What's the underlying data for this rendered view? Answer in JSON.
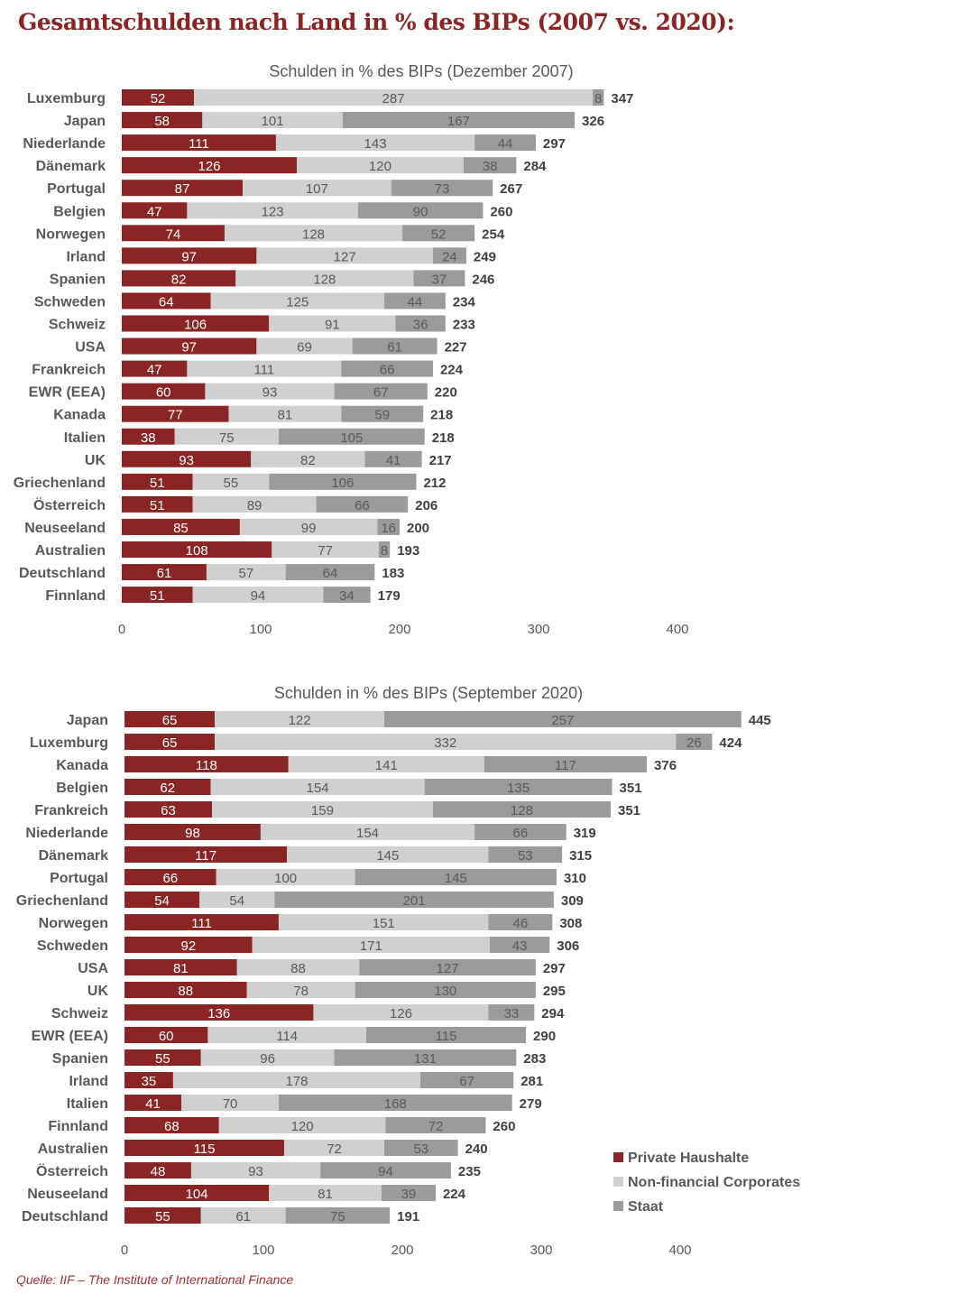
{
  "title": "Gesamtschulden nach Land in % des BIPs (2007 vs. 2020):",
  "source": "Quelle: IIF – The Institute of International Finance",
  "colors": {
    "Private Haushalte": "#8b2525",
    "Non-financial Corporates": "#d0d0d0",
    "Staat": "#9b9b9b"
  },
  "legend": {
    "placement": "bottom-right",
    "items": [
      "Private Haushalte",
      "Non-financial Corporates",
      "Staat"
    ]
  },
  "chart_data": [
    {
      "type": "bar",
      "orientation": "horizontal",
      "stacked": true,
      "title": "Schulden in % des BIPs (Dezember 2007)",
      "xlim": [
        0,
        400
      ],
      "xticks": [
        0,
        100,
        200,
        300,
        400
      ],
      "grid": false,
      "categories": [
        "Luxemburg",
        "Japan",
        "Niederlande",
        "Dänemark",
        "Portugal",
        "Belgien",
        "Norwegen",
        "Irland",
        "Spanien",
        "Schweden",
        "Schweiz",
        "USA",
        "Frankreich",
        "EWR (EEA)",
        "Kanada",
        "Italien",
        "UK",
        "Griechenland",
        "Österreich",
        "Neuseeland",
        "Australien",
        "Deutschland",
        "Finnland"
      ],
      "series": [
        {
          "name": "Private Haushalte",
          "values": [
            52,
            58,
            111,
            126,
            87,
            47,
            74,
            97,
            82,
            64,
            106,
            97,
            47,
            60,
            77,
            38,
            93,
            51,
            51,
            85,
            108,
            61,
            51
          ]
        },
        {
          "name": "Non-financial Corporates",
          "values": [
            287,
            101,
            143,
            120,
            107,
            123,
            128,
            127,
            128,
            125,
            91,
            69,
            111,
            93,
            81,
            75,
            82,
            55,
            89,
            99,
            77,
            57,
            94
          ]
        },
        {
          "name": "Staat",
          "values": [
            8,
            167,
            44,
            38,
            73,
            90,
            52,
            24,
            37,
            44,
            36,
            61,
            66,
            67,
            59,
            105,
            41,
            106,
            66,
            16,
            8,
            64,
            34
          ]
        }
      ],
      "totals": [
        347,
        326,
        297,
        284,
        267,
        260,
        254,
        249,
        246,
        234,
        233,
        227,
        224,
        220,
        218,
        218,
        217,
        212,
        206,
        200,
        193,
        183,
        179
      ]
    },
    {
      "type": "bar",
      "orientation": "horizontal",
      "stacked": true,
      "title": "Schulden in % des BIPs (September 2020)",
      "xlim": [
        0,
        400
      ],
      "xticks": [
        0,
        100,
        200,
        300,
        400
      ],
      "grid": false,
      "categories": [
        "Japan",
        "Luxemburg",
        "Kanada",
        "Belgien",
        "Frankreich",
        "Niederlande",
        "Dänemark",
        "Portugal",
        "Griechenland",
        "Norwegen",
        "Schweden",
        "USA",
        "UK",
        "Schweiz",
        "EWR (EEA)",
        "Spanien",
        "Irland",
        "Italien",
        "Finnland",
        "Australien",
        "Österreich",
        "Neuseeland",
        "Deutschland"
      ],
      "series": [
        {
          "name": "Private Haushalte",
          "values": [
            65,
            65,
            118,
            62,
            63,
            98,
            117,
            66,
            54,
            111,
            92,
            81,
            88,
            136,
            60,
            55,
            35,
            41,
            68,
            115,
            48,
            104,
            55
          ]
        },
        {
          "name": "Non-financial Corporates",
          "values": [
            122,
            332,
            141,
            154,
            159,
            154,
            145,
            100,
            54,
            151,
            171,
            88,
            78,
            126,
            114,
            96,
            178,
            70,
            120,
            72,
            93,
            81,
            61
          ]
        },
        {
          "name": "Staat",
          "values": [
            257,
            26,
            117,
            135,
            128,
            66,
            53,
            145,
            201,
            46,
            43,
            127,
            130,
            33,
            115,
            131,
            67,
            168,
            72,
            53,
            94,
            39,
            75
          ]
        }
      ],
      "totals": [
        445,
        424,
        376,
        351,
        351,
        319,
        315,
        310,
        309,
        308,
        306,
        297,
        295,
        294,
        290,
        283,
        281,
        279,
        260,
        240,
        235,
        224,
        191
      ]
    }
  ]
}
